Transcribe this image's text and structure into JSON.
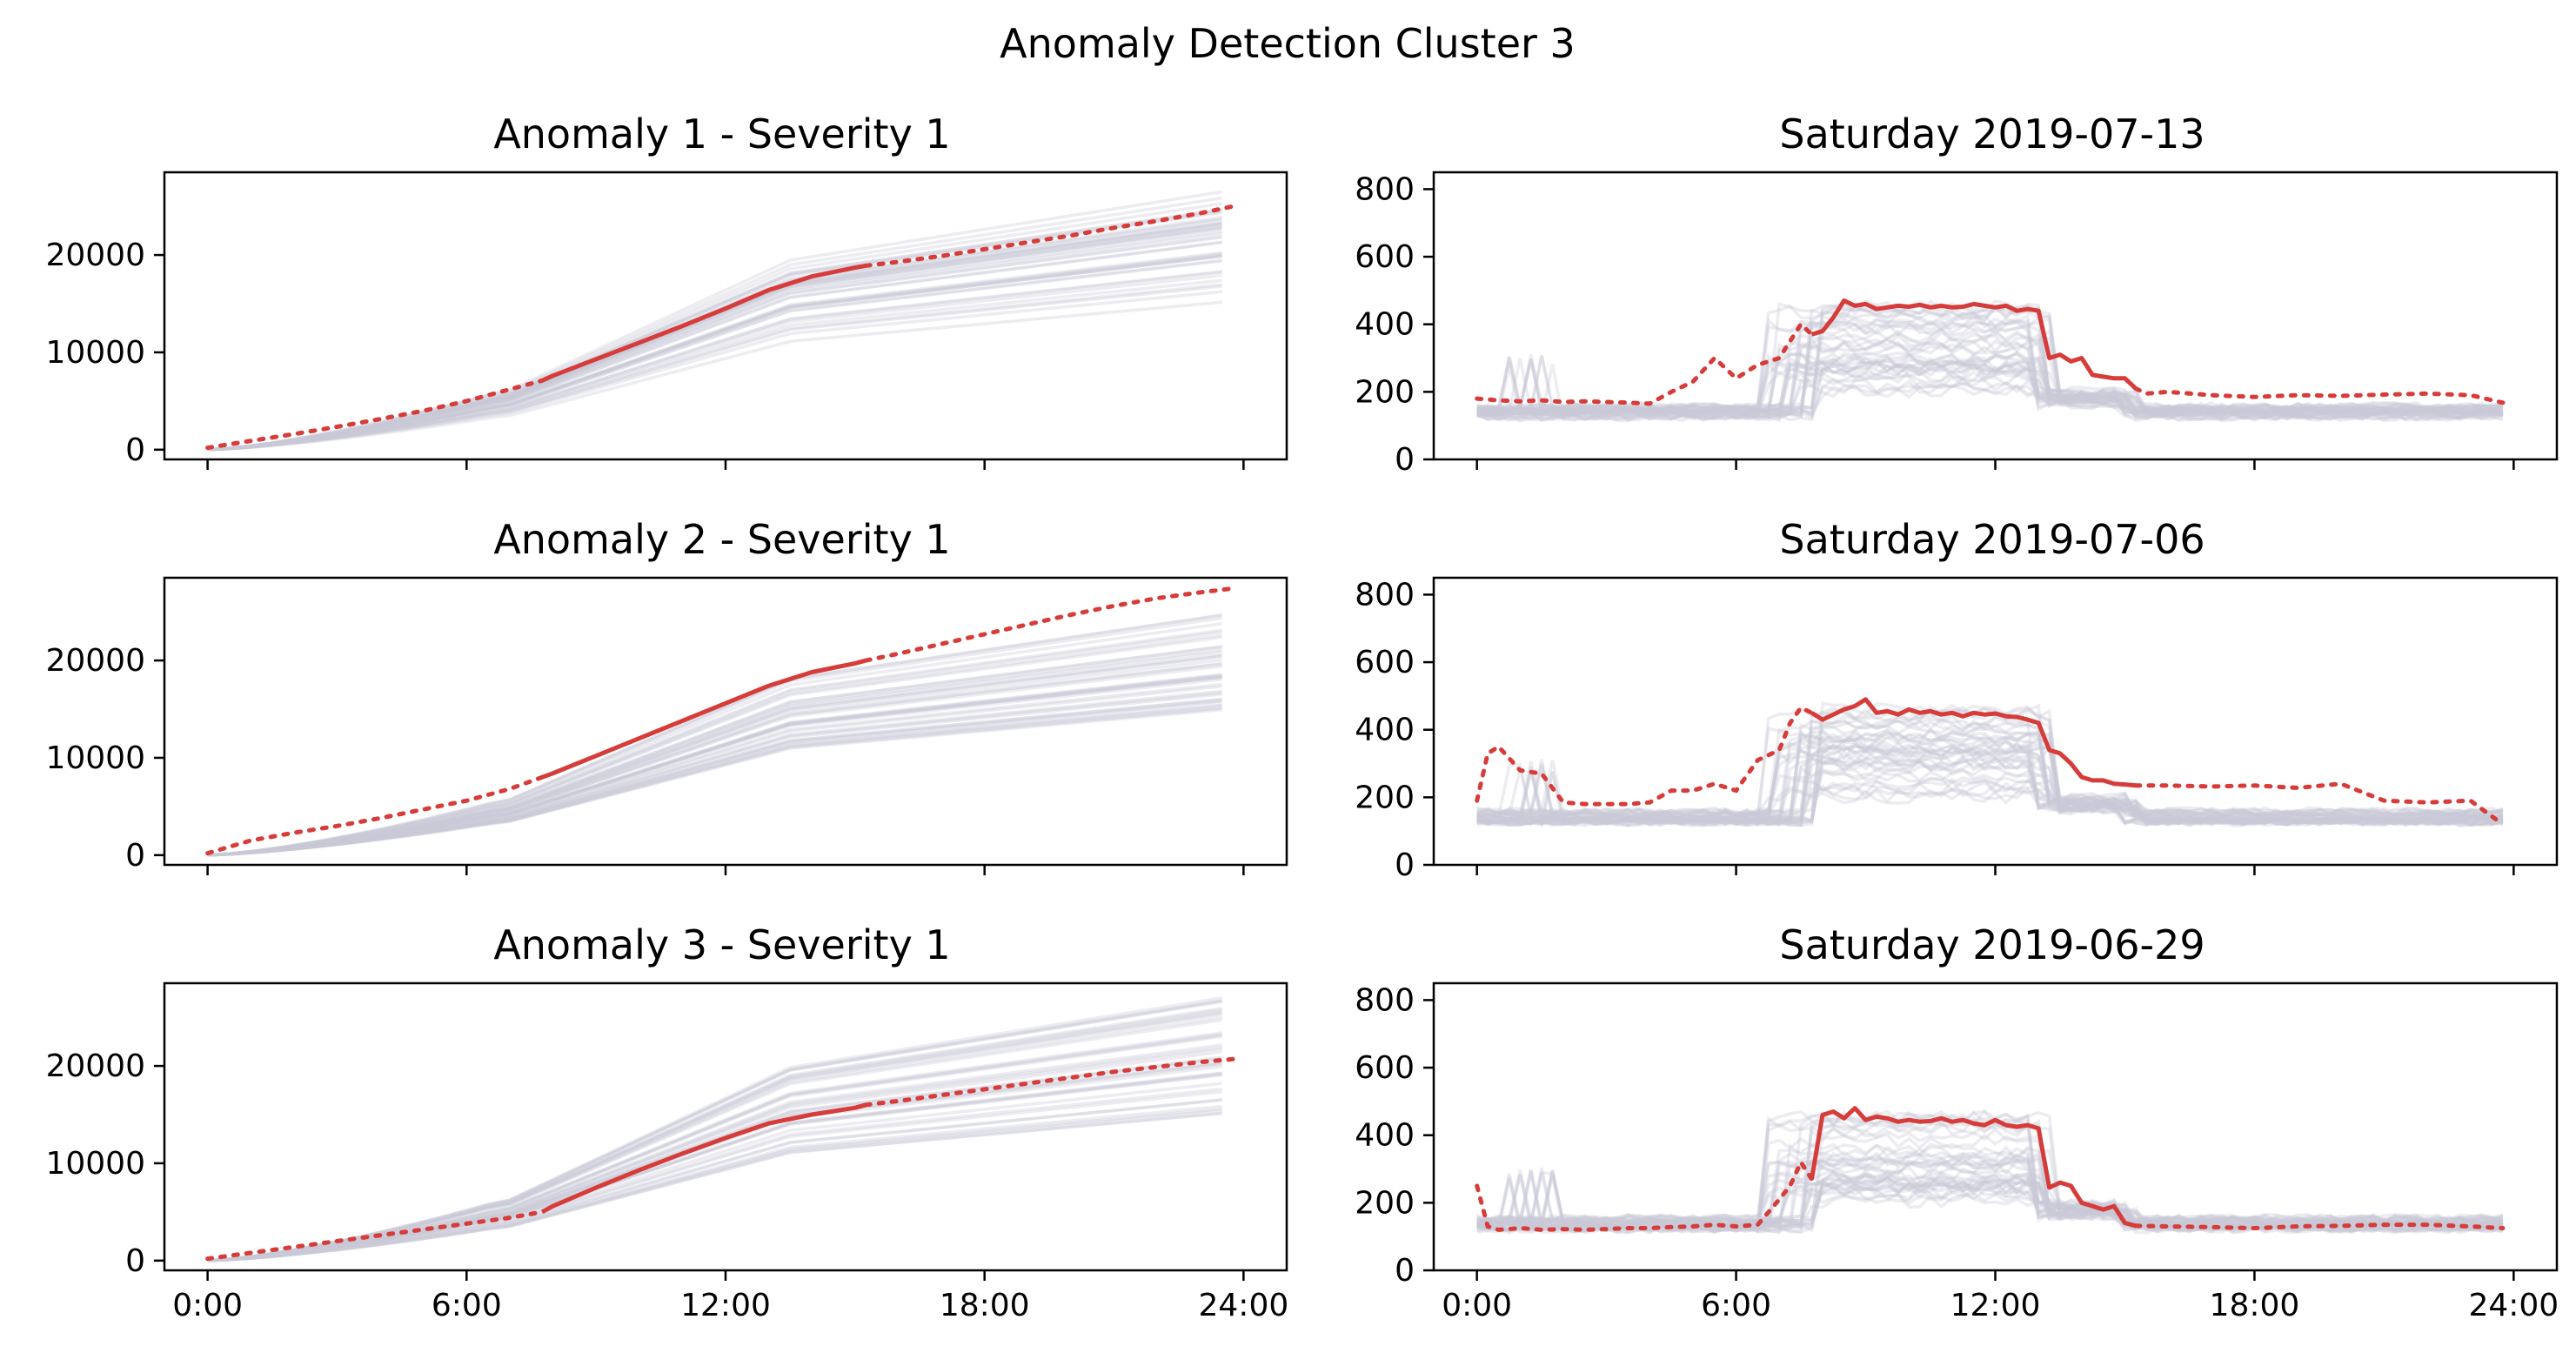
{
  "figure": {
    "title": "Anomaly Detection Cluster 3"
  },
  "colors": {
    "highlight": "#d63c3a",
    "background_lines": "#c8c8d6"
  },
  "chart_data": [
    {
      "panel": "cumulative-1",
      "type": "line",
      "title": "Anomaly 1 - Severity 1",
      "xlim": [
        -1,
        25
      ],
      "ylim": [
        -1000,
        28500
      ],
      "xticks": [
        0,
        6,
        12,
        18,
        24
      ],
      "xticklabels": [
        "0:00",
        "6:00",
        "12:00",
        "18:00",
        "24:00"
      ],
      "show_xticklabels": false,
      "yticks": [
        0,
        10000,
        20000
      ],
      "yticklabels": [
        "0",
        "10000",
        "20000"
      ],
      "background_count": 40,
      "background_final_range": [
        15000,
        27000
      ],
      "highlight": {
        "x": [
          0,
          1,
          2,
          3,
          4,
          5,
          6,
          7,
          7.75,
          8,
          9,
          10,
          11,
          12,
          13,
          14,
          15,
          15.25,
          16,
          17,
          18,
          19,
          20,
          21,
          22,
          23,
          23.75
        ],
        "y": [
          200,
          900,
          1600,
          2350,
          3150,
          4000,
          5000,
          6200,
          7100,
          7600,
          9300,
          11000,
          12700,
          14500,
          16400,
          17800,
          18700,
          18900,
          19300,
          19900,
          20600,
          21300,
          22000,
          22800,
          23500,
          24300,
          25000
        ],
        "solid_range": [
          7.75,
          15.25
        ]
      }
    },
    {
      "panel": "daily-1",
      "type": "line",
      "title": "Saturday 2019-07-13",
      "xlim": [
        -1,
        25
      ],
      "ylim": [
        0,
        850
      ],
      "xticks": [
        0,
        6,
        12,
        18,
        24
      ],
      "xticklabels": [
        "0:00",
        "6:00",
        "12:00",
        "18:00",
        "24:00"
      ],
      "show_xticklabels": false,
      "yticks": [
        0,
        200,
        400,
        600,
        800
      ],
      "yticklabels": [
        "0",
        "200",
        "400",
        "600",
        "800"
      ],
      "background_count": 40,
      "highlight": {
        "x": [
          0,
          0.5,
          1,
          1.5,
          2,
          2.5,
          3,
          3.5,
          4,
          4.5,
          5,
          5.5,
          6,
          6.5,
          7,
          7.5,
          7.75,
          8,
          8.25,
          8.5,
          8.75,
          9,
          9.25,
          9.5,
          9.75,
          10,
          10.25,
          10.5,
          10.75,
          11,
          11.25,
          11.5,
          11.75,
          12,
          12.25,
          12.5,
          12.75,
          13,
          13.25,
          13.5,
          13.75,
          14,
          14.25,
          14.5,
          14.75,
          15,
          15.25,
          15.5,
          16,
          17,
          18,
          19,
          20,
          21,
          22,
          23,
          23.75
        ],
        "y": [
          180,
          175,
          172,
          175,
          170,
          172,
          170,
          168,
          165,
          200,
          230,
          300,
          240,
          280,
          300,
          400,
          370,
          380,
          420,
          470,
          455,
          460,
          445,
          450,
          455,
          452,
          458,
          450,
          455,
          450,
          452,
          460,
          455,
          450,
          455,
          440,
          445,
          440,
          300,
          310,
          290,
          300,
          250,
          245,
          240,
          240,
          210,
          195,
          200,
          190,
          185,
          190,
          188,
          192,
          195,
          190,
          168
        ],
        "solid_range": [
          7.75,
          15.25
        ]
      }
    },
    {
      "panel": "cumulative-2",
      "type": "line",
      "title": "Anomaly 2 - Severity 1",
      "xlim": [
        -1,
        25
      ],
      "ylim": [
        -1000,
        28500
      ],
      "xticks": [
        0,
        6,
        12,
        18,
        24
      ],
      "xticklabels": [
        "0:00",
        "6:00",
        "12:00",
        "18:00",
        "24:00"
      ],
      "show_xticklabels": false,
      "yticks": [
        0,
        10000,
        20000
      ],
      "yticklabels": [
        "0",
        "10000",
        "20000"
      ],
      "background_count": 40,
      "background_final_range": [
        15000,
        25000
      ],
      "highlight": {
        "x": [
          0,
          1,
          2,
          3,
          4,
          5,
          6,
          7,
          7.75,
          8,
          9,
          10,
          11,
          12,
          13,
          14,
          15,
          15.25,
          16,
          17,
          18,
          19,
          20,
          21,
          22,
          23,
          23.75
        ],
        "y": [
          200,
          1500,
          2300,
          3000,
          3800,
          4700,
          5600,
          6800,
          8000,
          8400,
          10200,
          12000,
          13800,
          15600,
          17400,
          18800,
          19700,
          20000,
          20700,
          21700,
          22700,
          23700,
          24700,
          25600,
          26400,
          27000,
          27400
        ],
        "solid_range": [
          7.75,
          15.25
        ]
      }
    },
    {
      "panel": "daily-2",
      "type": "line",
      "title": "Saturday 2019-07-06",
      "xlim": [
        -1,
        25
      ],
      "ylim": [
        0,
        850
      ],
      "xticks": [
        0,
        6,
        12,
        18,
        24
      ],
      "xticklabels": [
        "0:00",
        "6:00",
        "12:00",
        "18:00",
        "24:00"
      ],
      "show_xticklabels": false,
      "yticks": [
        0,
        200,
        400,
        600,
        800
      ],
      "yticklabels": [
        "0",
        "200",
        "400",
        "600",
        "800"
      ],
      "background_count": 40,
      "highlight": {
        "x": [
          0,
          0.25,
          0.5,
          1,
          1.5,
          2,
          2.5,
          3,
          3.5,
          4,
          4.5,
          5,
          5.5,
          6,
          6.5,
          7,
          7.25,
          7.5,
          7.75,
          8,
          8.25,
          8.5,
          8.75,
          9,
          9.25,
          9.5,
          9.75,
          10,
          10.25,
          10.5,
          10.75,
          11,
          11.25,
          11.5,
          11.75,
          12,
          12.25,
          12.5,
          12.75,
          13,
          13.25,
          13.5,
          13.75,
          14,
          14.25,
          14.5,
          14.75,
          15,
          15.25,
          16,
          17,
          18,
          19,
          20,
          21,
          22,
          23,
          23.75
        ],
        "y": [
          190,
          330,
          350,
          280,
          270,
          185,
          180,
          180,
          180,
          185,
          220,
          220,
          240,
          220,
          310,
          340,
          420,
          465,
          450,
          430,
          445,
          460,
          470,
          490,
          450,
          455,
          445,
          460,
          450,
          455,
          445,
          450,
          440,
          450,
          445,
          448,
          440,
          438,
          430,
          420,
          340,
          330,
          300,
          260,
          250,
          250,
          240,
          238,
          235,
          235,
          232,
          235,
          228,
          240,
          190,
          185,
          190,
          120
        ],
        "solid_range": [
          7.75,
          15.25
        ]
      }
    },
    {
      "panel": "cumulative-3",
      "type": "line",
      "title": "Anomaly 3 - Severity 1",
      "xlim": [
        -1,
        25
      ],
      "ylim": [
        -1000,
        28500
      ],
      "xticks": [
        0,
        6,
        12,
        18,
        24
      ],
      "xticklabels": [
        "0:00",
        "6:00",
        "12:00",
        "18:00",
        "24:00"
      ],
      "show_xticklabels": true,
      "yticks": [
        0,
        10000,
        20000
      ],
      "yticklabels": [
        "0",
        "10000",
        "20000"
      ],
      "background_count": 40,
      "background_final_range": [
        15000,
        27500
      ],
      "highlight": {
        "x": [
          0,
          1,
          2,
          3,
          4,
          5,
          6,
          7,
          7.75,
          8,
          9,
          10,
          11,
          12,
          13,
          14,
          15,
          15.25,
          16,
          17,
          18,
          19,
          20,
          21,
          22,
          23,
          23.75
        ],
        "y": [
          200,
          800,
          1400,
          2000,
          2600,
          3200,
          3800,
          4400,
          5000,
          5600,
          7500,
          9300,
          11000,
          12600,
          14100,
          15000,
          15700,
          16000,
          16400,
          17000,
          17600,
          18200,
          18800,
          19400,
          19900,
          20400,
          20700
        ],
        "solid_range": [
          7.75,
          15.25
        ]
      }
    },
    {
      "panel": "daily-3",
      "type": "line",
      "title": "Saturday 2019-06-29",
      "xlim": [
        -1,
        25
      ],
      "ylim": [
        0,
        850
      ],
      "xticks": [
        0,
        6,
        12,
        18,
        24
      ],
      "xticklabels": [
        "0:00",
        "6:00",
        "12:00",
        "18:00",
        "24:00"
      ],
      "show_xticklabels": true,
      "yticks": [
        0,
        200,
        400,
        600,
        800
      ],
      "yticklabels": [
        "0",
        "200",
        "400",
        "600",
        "800"
      ],
      "background_count": 40,
      "highlight": {
        "x": [
          0,
          0.25,
          0.5,
          1,
          1.5,
          2,
          2.5,
          3,
          3.5,
          4,
          4.5,
          5,
          5.5,
          6,
          6.5,
          7,
          7.25,
          7.5,
          7.75,
          8,
          8.25,
          8.5,
          8.75,
          9,
          9.25,
          9.5,
          9.75,
          10,
          10.25,
          10.5,
          10.75,
          11,
          11.25,
          11.5,
          11.75,
          12,
          12.25,
          12.5,
          12.75,
          13,
          13.25,
          13.5,
          13.75,
          14,
          14.25,
          14.5,
          14.75,
          15,
          15.25,
          16,
          17,
          18,
          19,
          20,
          21,
          22,
          23,
          23.75
        ],
        "y": [
          250,
          130,
          120,
          125,
          120,
          122,
          120,
          122,
          125,
          125,
          128,
          130,
          135,
          130,
          135,
          210,
          250,
          320,
          270,
          460,
          470,
          450,
          480,
          445,
          455,
          450,
          440,
          445,
          440,
          442,
          450,
          440,
          445,
          435,
          430,
          445,
          430,
          425,
          430,
          420,
          245,
          260,
          250,
          200,
          190,
          180,
          190,
          140,
          132,
          130,
          128,
          125,
          130,
          132,
          135,
          135,
          130,
          125
        ],
        "solid_range": [
          7.75,
          15.25
        ]
      }
    }
  ]
}
